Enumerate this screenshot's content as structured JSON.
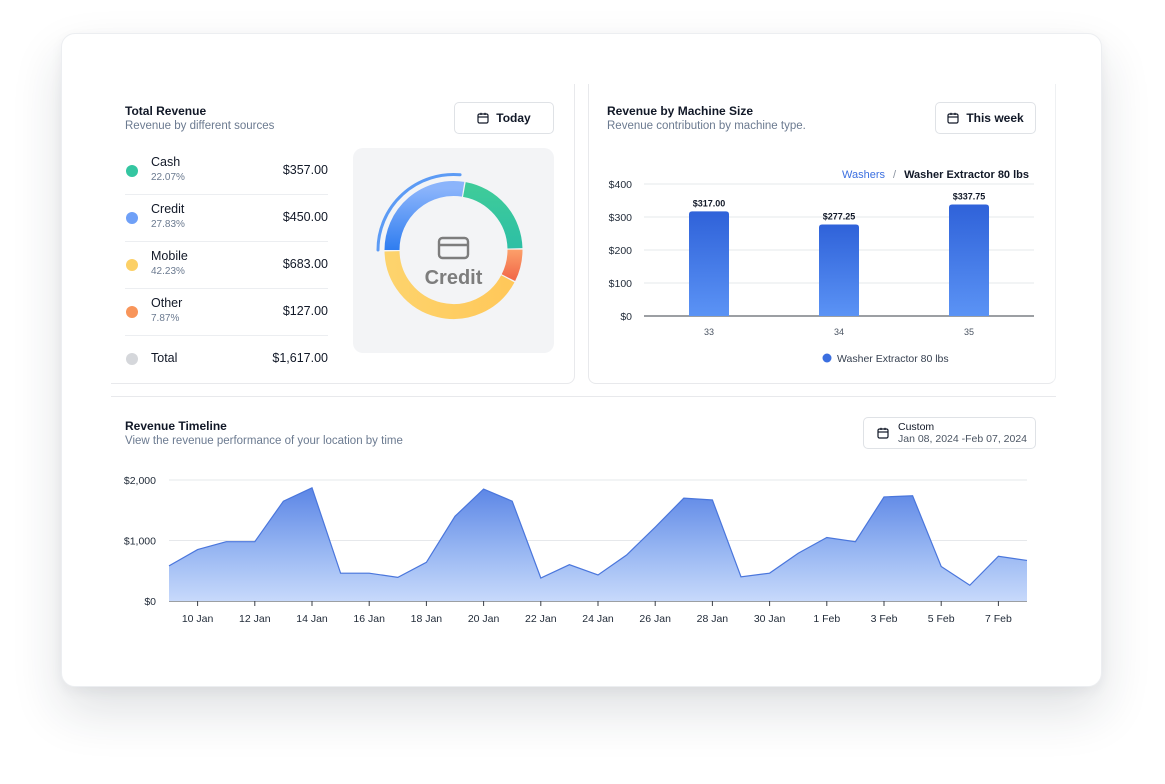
{
  "revenue": {
    "title": "Total Revenue",
    "subtitle": "Revenue by different sources",
    "filter_label": "Today",
    "center_label": "Credit",
    "sources": [
      {
        "name": "Cash",
        "pct": "22.07%",
        "value": "$357.00",
        "color": "#34c6a1"
      },
      {
        "name": "Credit",
        "pct": "27.83%",
        "value": "$450.00",
        "color": "#6fa0f7"
      },
      {
        "name": "Mobile",
        "pct": "42.23%",
        "value": "$683.00",
        "color": "#fcd066"
      },
      {
        "name": "Other",
        "pct": "7.87%",
        "value": "$127.00",
        "color": "#f8955a"
      }
    ],
    "total": {
      "name": "Total",
      "value": "$1,617.00",
      "color": "#d5d7db"
    }
  },
  "machine": {
    "title": "Revenue by Machine Size",
    "subtitle": "Revenue contribution by machine type.",
    "filter_label": "This week",
    "breadcrumb_link": "Washers",
    "breadcrumb_sep": "/",
    "breadcrumb_current": "Washer Extractor 80 lbs"
  },
  "timeline": {
    "title": "Revenue Timeline",
    "subtitle": "View the revenue performance of your location by time",
    "filter_title": "Custom",
    "filter_range": "Jan 08, 2024 -Feb 07, 2024"
  },
  "chart_data": [
    {
      "type": "pie",
      "categories": [
        "Cash",
        "Credit",
        "Mobile",
        "Other"
      ],
      "values": [
        357.0,
        450.0,
        683.0,
        127.0
      ],
      "highlighted": "Credit"
    },
    {
      "type": "bar",
      "categories": [
        "33",
        "34",
        "35"
      ],
      "series": [
        {
          "name": "Washer Extractor 80 lbs",
          "values": [
            317.0,
            277.25,
            337.75
          ],
          "labels": [
            "$317.00",
            "$277.25",
            "$337.75"
          ]
        }
      ],
      "ylim": [
        0,
        400
      ],
      "yticks": [
        0,
        100,
        200,
        300,
        400
      ],
      "ytick_labels": [
        "$0",
        "$100",
        "$200",
        "$300",
        "$400"
      ],
      "legend": "bottom",
      "grid": true,
      "color": "#3b6fe0"
    },
    {
      "type": "area",
      "x": [
        "9 Jan",
        "10 Jan",
        "11 Jan",
        "12 Jan",
        "13 Jan",
        "14 Jan",
        "15 Jan",
        "16 Jan",
        "17 Jan",
        "18 Jan",
        "19 Jan",
        "20 Jan",
        "21 Jan",
        "22 Jan",
        "23 Jan",
        "24 Jan",
        "25 Jan",
        "26 Jan",
        "27 Jan",
        "28 Jan",
        "29 Jan",
        "30 Jan",
        "31 Jan",
        "1 Feb",
        "2 Feb",
        "3 Feb",
        "4 Feb",
        "5 Feb",
        "6 Feb",
        "7 Feb",
        "8 Feb"
      ],
      "values": [
        580,
        850,
        980,
        980,
        1650,
        1870,
        460,
        460,
        390,
        640,
        1400,
        1850,
        1650,
        380,
        600,
        430,
        760,
        1220,
        1700,
        1670,
        400,
        460,
        790,
        1050,
        980,
        1720,
        1740,
        570,
        260,
        740,
        670
      ],
      "xtick_labels": [
        "10 Jan",
        "12 Jan",
        "14 Jan",
        "16 Jan",
        "18 Jan",
        "20 Jan",
        "22 Jan",
        "24 Jan",
        "26 Jan",
        "28 Jan",
        "30 Jan",
        "1 Feb",
        "3 Feb",
        "5 Feb",
        "7 Feb"
      ],
      "ylim": [
        0,
        2000
      ],
      "yticks": [
        0,
        1000,
        2000
      ],
      "ytick_labels": [
        "$0",
        "$1,000",
        "$2,000"
      ],
      "grid": true,
      "color": "#5b86e8"
    }
  ]
}
